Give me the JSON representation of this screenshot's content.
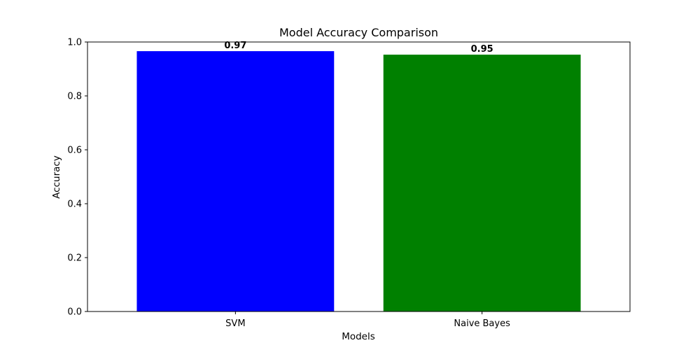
{
  "chart_data": {
    "type": "bar",
    "title": "Model Accuracy Comparison",
    "xlabel": "Models",
    "ylabel": "Accuracy",
    "categories": [
      "SVM",
      "Naive Bayes"
    ],
    "values": [
      0.966,
      0.953
    ],
    "data_labels": [
      "0.97",
      "0.95"
    ],
    "colors": [
      "#0000ff",
      "#008000"
    ],
    "ylim": [
      0,
      1.0
    ],
    "yticks": [
      0.0,
      0.2,
      0.4,
      0.6,
      0.8,
      1.0
    ],
    "ytick_labels": [
      "0.0",
      "0.2",
      "0.4",
      "0.6",
      "0.8",
      "1.0"
    ],
    "grid": false,
    "legend": "none"
  }
}
